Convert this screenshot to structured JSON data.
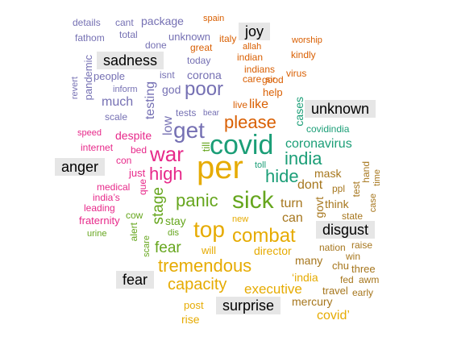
{
  "colors": {
    "sadness": "#7570b3",
    "joy": "#d95f02",
    "anger": "#e7298a",
    "fear": "#e6ab02",
    "disgust": "#66a61e",
    "unknown": "#1b9e77",
    "surprise": "#a6761d",
    "label_background": "#e6e6e6"
  },
  "labels": {
    "joy": "joy",
    "sadness": "sadness",
    "unknown": "unknown",
    "anger": "anger",
    "disgust": "disgust",
    "fear": "fear",
    "surprise": "surprise"
  },
  "words": {
    "details": "details",
    "cant": "cant",
    "package": "package",
    "fathom": "fathom",
    "total": "total",
    "unknown": "unknown",
    "done": "done",
    "pandemic": "pandemic",
    "isnt": "isnt",
    "corona": "corona",
    "today": "today",
    "people": "people",
    "revert": "revert",
    "inform": "inform",
    "god": "god",
    "testing": "testing",
    "poor": "poor",
    "much": "much",
    "tests": "tests",
    "bear": "bear",
    "scale": "scale",
    "spain": "spain",
    "italy": "italy",
    "allah": "allah",
    "great": "great",
    "worship": "worship",
    "indian": "indian",
    "kindly": "kindly",
    "indians": "indians",
    "care": "care",
    "sir": "sir",
    "virus": "virus",
    "good": "good",
    "help": "help",
    "live": "live",
    "like": "like",
    "please": "please",
    "speed": "speed",
    "despite": "despite",
    "internet": "internet",
    "bed": "bed",
    "con": "con",
    "just": "just",
    "medical": "medical",
    "indias": "india’s",
    "leading": "leading",
    "fraternity": "fraternity",
    "urine": "urine",
    "war": "war",
    "high": "high",
    "low": "low",
    "que": "que",
    "cow": "cow",
    "alert": "alert",
    "scare": "scare",
    "dis": "dis",
    "cases": "cases",
    "covidindia": "covidindia",
    "covid": "covid",
    "coronavirus": "coronavirus",
    "india": "india",
    "toll": "toll",
    "hide": "hide",
    "mask": "mask",
    "dont": "dont",
    "ppl": "ppl",
    "think": "think",
    "test": "test",
    "hand": "hand",
    "time": "time",
    "case": "case",
    "state": "state",
    "turn": "turn",
    "can": "can",
    "govt": "govt",
    "per": "per",
    "get": "get",
    "till": "till",
    "panic": "panic",
    "sick": "sick",
    "stage": "stage",
    "stay": "stay",
    "top": "top",
    "combat": "combat",
    "fear": "fear",
    "new": "new",
    "will": "will",
    "director": "director",
    "tremendous": "tremendous",
    "many": "many",
    "nation": "nation",
    "raise": "raise",
    "win": "win",
    "chu": "chu",
    "three": "three",
    "india_q": "‘india",
    "fed": "fed",
    "awm": "awm",
    "capacity": "capacity",
    "executive": "executive",
    "travel": "travel",
    "early": "early",
    "mercury": "mercury",
    "post": "post",
    "rise": "rise",
    "covid_q": "covid’"
  }
}
